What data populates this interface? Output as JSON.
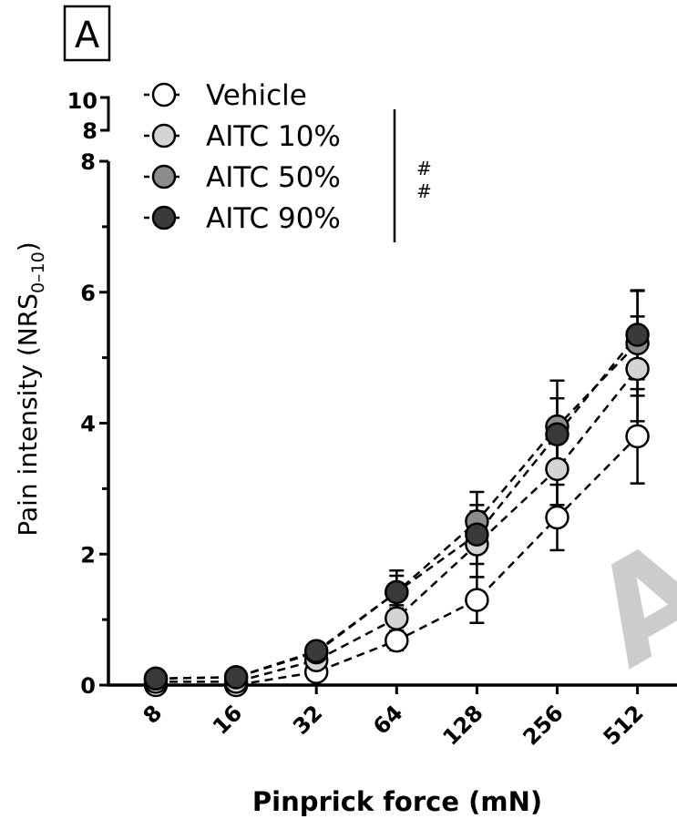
{
  "panel_label": "A",
  "chart_data": {
    "type": "line",
    "xlabel": "Pinprick force (mN)",
    "ylabel": "Pain intensity (NRS",
    "ylabel_sub": "0–10",
    "ylabel_close": ")",
    "categories": [
      "8",
      "16",
      "32",
      "64",
      "128",
      "256",
      "512"
    ],
    "x_scale": "log2",
    "ylim": [
      0,
      8
    ],
    "y_ticks": [
      0,
      2,
      4,
      6,
      8
    ],
    "y_break": {
      "labels": [
        "10",
        "8"
      ]
    },
    "significance_marks": [
      "#",
      "#"
    ],
    "watermark": "AC",
    "series": [
      {
        "name": "Vehicle",
        "color": "#ffffff",
        "values": [
          0.0,
          0.0,
          0.2,
          0.68,
          1.3,
          2.56,
          3.8
        ],
        "error": [
          0.05,
          0.05,
          0.08,
          0.15,
          0.35,
          0.5,
          0.72
        ]
      },
      {
        "name": "AITC 10%",
        "color": "#d4d4d4",
        "values": [
          0.05,
          0.05,
          0.38,
          1.02,
          2.15,
          3.3,
          4.83
        ],
        "error": [
          0.05,
          0.05,
          0.1,
          0.2,
          0.5,
          0.55,
          0.8
        ]
      },
      {
        "name": "AITC 50%",
        "color": "#8c8c8c",
        "values": [
          0.1,
          0.12,
          0.5,
          1.42,
          2.5,
          3.95,
          5.22
        ],
        "error": [
          0.05,
          0.05,
          0.12,
          0.25,
          0.45,
          0.7,
          0.8
        ]
      },
      {
        "name": "AITC 90%",
        "color": "#3a3a3a",
        "values": [
          0.1,
          0.12,
          0.52,
          1.42,
          2.3,
          3.83,
          5.35
        ],
        "error": [
          0.05,
          0.05,
          0.12,
          0.33,
          0.45,
          0.55,
          0.68
        ]
      }
    ]
  }
}
